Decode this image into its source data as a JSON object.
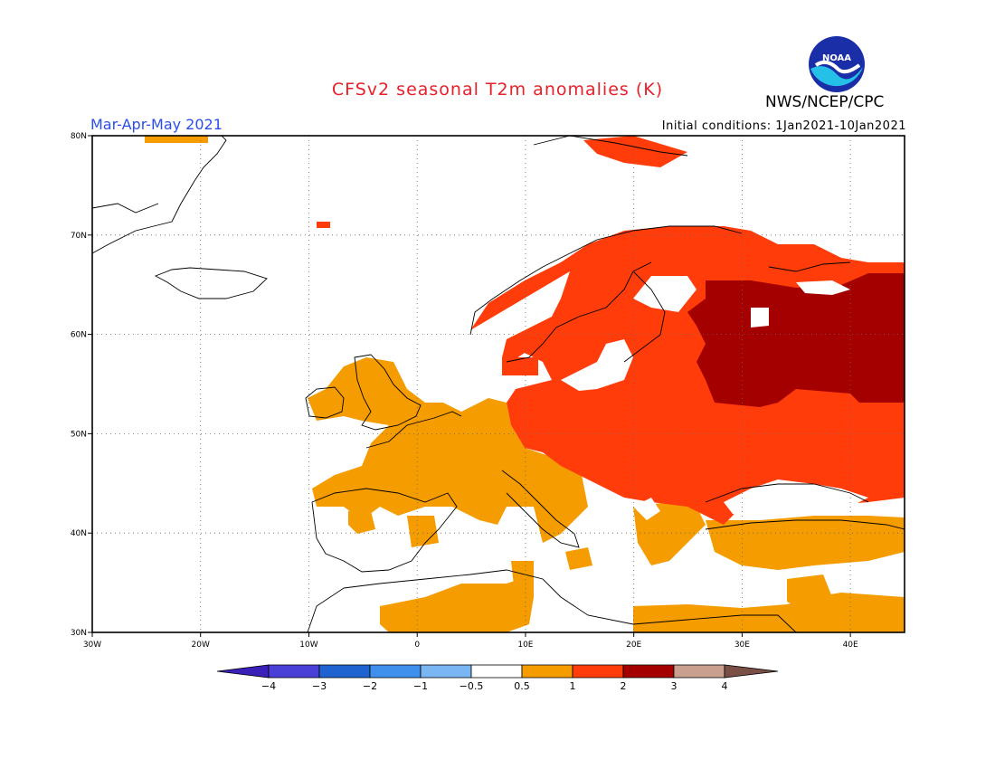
{
  "title": "CFSv2 seasonal T2m anomalies (K)",
  "period": "Mar-Apr-May 2021",
  "initial_conditions": "Initial conditions: 1Jan2021-10Jan2021",
  "agency": "NWS/NCEP/CPC",
  "logo_text": "NOAA",
  "colors": {
    "title": "#e8202a",
    "period": "#2b4ee8",
    "land_line": "#000000",
    "grid": "#666666"
  },
  "map": {
    "lon_range": [
      -30,
      45
    ],
    "lat_range": [
      30,
      80
    ],
    "lon_ticks": [
      {
        "value": -30,
        "label": "30W"
      },
      {
        "value": -20,
        "label": "20W"
      },
      {
        "value": -10,
        "label": "10W"
      },
      {
        "value": 0,
        "label": "0"
      },
      {
        "value": 10,
        "label": "10E"
      },
      {
        "value": 20,
        "label": "20E"
      },
      {
        "value": 30,
        "label": "30E"
      },
      {
        "value": 40,
        "label": "40E"
      }
    ],
    "lat_ticks": [
      {
        "value": 80,
        "label": "80N"
      },
      {
        "value": 70,
        "label": "70N"
      },
      {
        "value": 60,
        "label": "60N"
      },
      {
        "value": 50,
        "label": "50N"
      },
      {
        "value": 40,
        "label": "40N"
      },
      {
        "value": 30,
        "label": "30N"
      }
    ]
  },
  "colorbar": {
    "colors": [
      "#3a1fb8",
      "#4a40d8",
      "#1f63d0",
      "#3f8fec",
      "#7ab6f2",
      "#ffffff",
      "#f59c00",
      "#ff3c0a",
      "#a50000",
      "#c9a08f",
      "#7a4f45"
    ],
    "labels": [
      "-4",
      "-3",
      "-2",
      "-1",
      "-0.5",
      "0.5",
      "1",
      "2",
      "3",
      "4"
    ]
  },
  "anomaly_regions": [
    {
      "level": "1",
      "color": "#f59c00",
      "name": "orange"
    },
    {
      "level": "2",
      "color": "#ff3c0a",
      "name": "red"
    },
    {
      "level": "3",
      "color": "#a50000",
      "name": "dark-red"
    }
  ]
}
